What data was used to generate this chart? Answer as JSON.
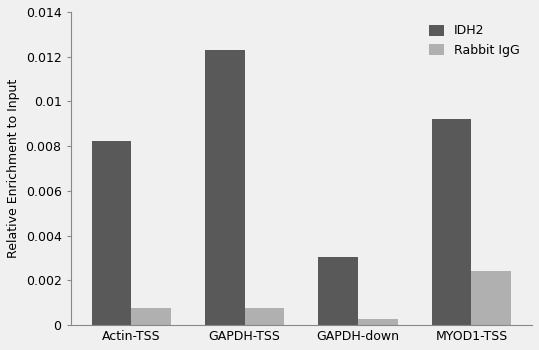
{
  "categories": [
    "Actin-TSS",
    "GAPDH-TSS",
    "GAPDH-down",
    "MYOD1-TSS"
  ],
  "idh2_values": [
    0.00825,
    0.0123,
    0.00305,
    0.0092
  ],
  "igg_values": [
    0.00075,
    0.00075,
    0.00028,
    0.0024
  ],
  "idh2_color": "#595959",
  "igg_color": "#b0b0b0",
  "ylabel": "Relative Enrichment to Input",
  "ylim": [
    0,
    0.014
  ],
  "yticks": [
    0,
    0.002,
    0.004,
    0.006,
    0.008,
    0.01,
    0.012,
    0.014
  ],
  "ytick_labels": [
    "0",
    "0.002",
    "0.004",
    "0.006",
    "0.008",
    "0.01",
    "0.012",
    "0.014"
  ],
  "legend_labels": [
    "IDH2",
    "Rabbit IgG"
  ],
  "bar_width": 0.35,
  "background_color": "#f0f0f0",
  "plot_bg_color": "#f0f0f0"
}
